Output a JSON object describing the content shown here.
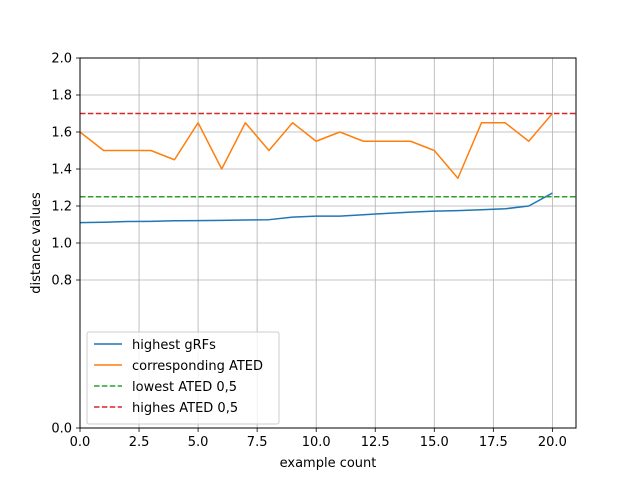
{
  "chart_data": {
    "type": "line",
    "title": "",
    "xlabel": "example count",
    "ylabel": "distance values",
    "xlim": [
      0,
      21
    ],
    "ylim": [
      0,
      2.0
    ],
    "xticks": [
      0,
      2.5,
      5,
      7.5,
      10,
      12.5,
      15,
      17.5,
      20
    ],
    "xtick_labels": [
      "0.0",
      "2.5",
      "5.0",
      "7.5",
      "10.0",
      "12.5",
      "15.0",
      "17.5",
      "20.0"
    ],
    "yticks": [
      0,
      0.8,
      1.0,
      1.2,
      1.4,
      1.6,
      1.8,
      2.0
    ],
    "ytick_labels": [
      "0.0",
      "0.8",
      "1.0",
      "1.2",
      "1.4",
      "1.6",
      "1.8",
      "2.0"
    ],
    "grid": true,
    "legend_position": "lower-left",
    "x": [
      0,
      1,
      2,
      3,
      4,
      5,
      6,
      7,
      8,
      9,
      10,
      11,
      12,
      13,
      14,
      15,
      16,
      17,
      18,
      19,
      20
    ],
    "series": [
      {
        "name": "highest gRFs",
        "color": "#1f77b4",
        "style": "solid",
        "values": [
          1.11,
          1.112,
          1.116,
          1.117,
          1.12,
          1.121,
          1.122,
          1.124,
          1.126,
          1.14,
          1.145,
          1.145,
          1.153,
          1.16,
          1.167,
          1.172,
          1.175,
          1.18,
          1.185,
          1.2,
          1.27
        ]
      },
      {
        "name": "corresponding ATED",
        "color": "#ff7f0e",
        "style": "solid",
        "values": [
          1.6,
          1.5,
          1.5,
          1.5,
          1.45,
          1.65,
          1.4,
          1.65,
          1.5,
          1.65,
          1.55,
          1.6,
          1.55,
          1.55,
          1.55,
          1.5,
          1.35,
          1.65,
          1.65,
          1.55,
          1.7
        ]
      },
      {
        "name": "lowest ATED 0,5",
        "color": "#2ca02c",
        "style": "dashed",
        "constant": 1.25
      },
      {
        "name": "highes ATED 0,5",
        "color": "#d62728",
        "style": "dashed",
        "constant": 1.7
      }
    ]
  }
}
